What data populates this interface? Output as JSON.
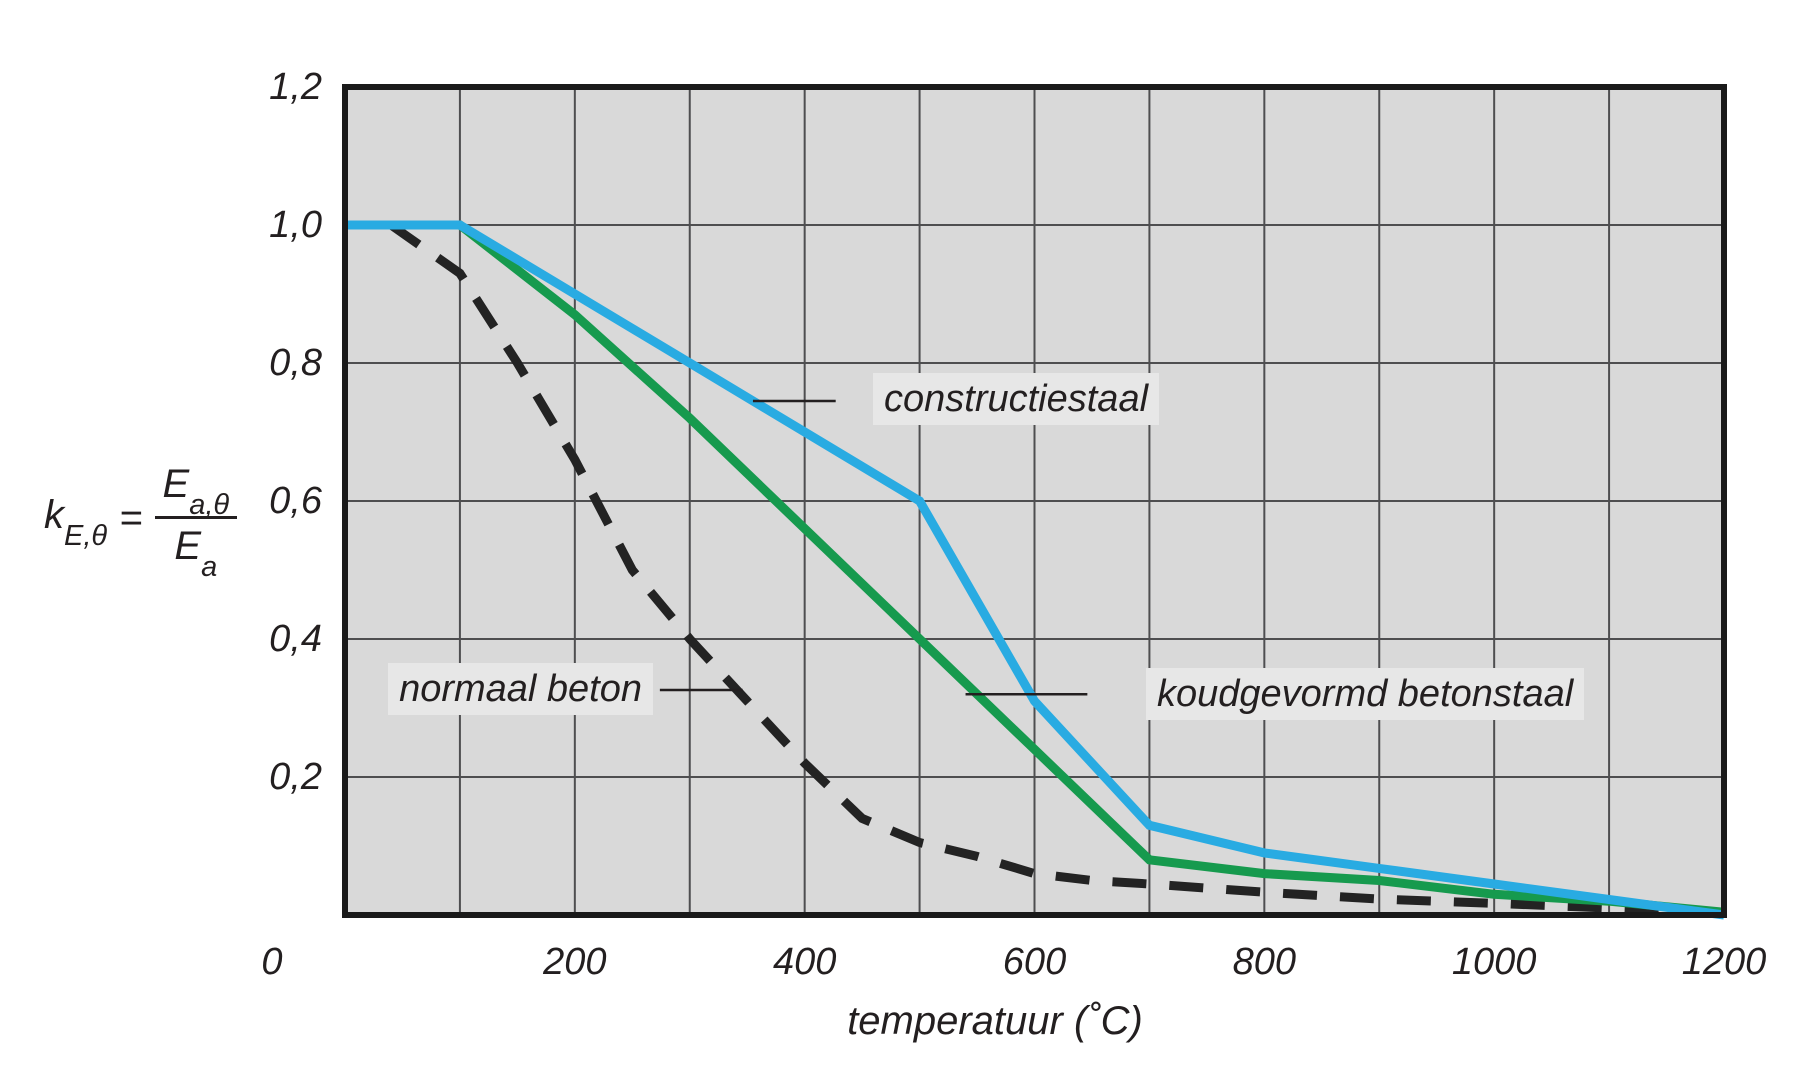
{
  "figure": {
    "background": "#ffffff",
    "plot_background": "#d9d9d9",
    "frame_color": "#1a1a1a",
    "grid_color": "#4e4e50",
    "text_color": "#231f20",
    "label_box_color": "#e7e7e7"
  },
  "labels": {
    "constructiestaal": "constructiestaal",
    "normaal_beton": "normaal beton",
    "koudgevormd_betonstaal": "koudgevormd betonstaal"
  },
  "x_axis": {
    "title": "temperatuur (˚C)",
    "origin_label": "0",
    "ticks": [
      {
        "v": 200,
        "label": "200"
      },
      {
        "v": 400,
        "label": "400"
      },
      {
        "v": 600,
        "label": "600"
      },
      {
        "v": 800,
        "label": "800"
      },
      {
        "v": 1000,
        "label": "1000"
      },
      {
        "v": 1200,
        "label": "1200"
      }
    ]
  },
  "y_axis": {
    "formula": {
      "var": "k",
      "var_sub": "E,θ",
      "equals": "=",
      "num_var": "E",
      "num_sub": "a,θ",
      "den_var": "E",
      "den_sub": "a"
    },
    "ticks": [
      {
        "v": 1.2,
        "label": "1,2"
      },
      {
        "v": 1.0,
        "label": "1,0"
      },
      {
        "v": 0.8,
        "label": "0,8"
      },
      {
        "v": 0.6,
        "label": "0,6"
      },
      {
        "v": 0.4,
        "label": "0,4"
      },
      {
        "v": 0.2,
        "label": "0,2"
      }
    ]
  },
  "chart_data": {
    "type": "line",
    "xlabel": "temperatuur (°C)",
    "ylabel": "k_E,θ = E_a,θ / E_a",
    "xlim": [
      0,
      1200
    ],
    "ylim": [
      0,
      1.2
    ],
    "x_gridline_step": 100,
    "y_gridline_step": 0.2,
    "grid": true,
    "legend": "inline annotations with leader lines",
    "series": [
      {
        "name": "normaal beton",
        "color": "#232323",
        "style": "dashed",
        "points": [
          [
            40,
            1.0
          ],
          [
            100,
            0.93
          ],
          [
            150,
            0.8
          ],
          [
            200,
            0.66
          ],
          [
            250,
            0.5
          ],
          [
            300,
            0.4
          ],
          [
            350,
            0.31
          ],
          [
            400,
            0.22
          ],
          [
            450,
            0.14
          ],
          [
            500,
            0.105
          ],
          [
            550,
            0.085
          ],
          [
            600,
            0.06
          ],
          [
            650,
            0.05
          ],
          [
            700,
            0.045
          ],
          [
            800,
            0.033
          ],
          [
            900,
            0.023
          ],
          [
            1000,
            0.017
          ],
          [
            1100,
            0.01
          ],
          [
            1200,
            0.004
          ]
        ]
      },
      {
        "name": "koudgevormd betonstaal",
        "color": "#169a4e",
        "style": "solid",
        "points": [
          [
            0,
            1.0
          ],
          [
            100,
            1.0
          ],
          [
            200,
            0.87
          ],
          [
            300,
            0.72
          ],
          [
            400,
            0.56
          ],
          [
            500,
            0.4
          ],
          [
            600,
            0.24
          ],
          [
            700,
            0.08
          ],
          [
            800,
            0.06
          ],
          [
            900,
            0.05
          ],
          [
            1000,
            0.03
          ],
          [
            1100,
            0.02
          ],
          [
            1200,
            0.004
          ]
        ]
      },
      {
        "name": "constructiestaal",
        "color": "#29abe2",
        "style": "solid",
        "points": [
          [
            0,
            1.0
          ],
          [
            100,
            1.0
          ],
          [
            200,
            0.9
          ],
          [
            300,
            0.8
          ],
          [
            400,
            0.7
          ],
          [
            500,
            0.6
          ],
          [
            600,
            0.31
          ],
          [
            700,
            0.13
          ],
          [
            800,
            0.09
          ],
          [
            900,
            0.0675
          ],
          [
            1000,
            0.045
          ],
          [
            1100,
            0.0225
          ],
          [
            1200,
            0
          ]
        ]
      }
    ],
    "annotations": [
      {
        "label": "constructiestaal",
        "leader": {
          "x1": 355,
          "x2": 427,
          "k": 0.745
        }
      },
      {
        "label": "normaal beton",
        "leader": {
          "x1": 274,
          "x2": 346,
          "k": 0.326
        }
      },
      {
        "label": "koudgevormd betonstaal",
        "leader": {
          "x1": 540,
          "x2": 646,
          "k": 0.32
        }
      }
    ]
  }
}
